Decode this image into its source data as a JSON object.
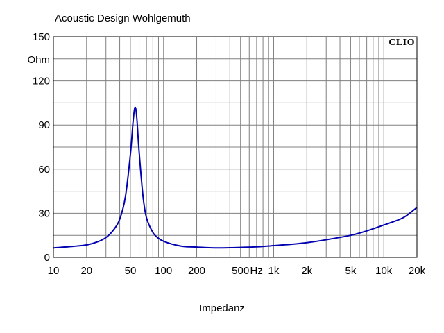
{
  "chart_data": {
    "type": "line",
    "title": "Acoustic Design Wohlgemuth",
    "xlabel": "Impedanz",
    "ylabel": "Ohm",
    "brand": "CLIO",
    "xscale": "log",
    "xlim": [
      10,
      20000
    ],
    "ylim": [
      0,
      150
    ],
    "grid": true,
    "y_ticks": [
      "0",
      "30",
      "60",
      "90",
      "120",
      "150"
    ],
    "y_tick_values": [
      0,
      30,
      60,
      90,
      120,
      150
    ],
    "x_ticks": [
      "10",
      "20",
      "50",
      "100",
      "200",
      "500",
      "1k",
      "2k",
      "5k",
      "10k",
      "20k"
    ],
    "x_tick_values": [
      10,
      20,
      50,
      100,
      200,
      500,
      1000,
      2000,
      5000,
      10000,
      20000
    ],
    "x_unit": "Hz",
    "line_color": "#0000b0",
    "series": [
      {
        "x": [
          10,
          15,
          20,
          25,
          30,
          35,
          40,
          45,
          50,
          53,
          55,
          57,
          60,
          65,
          70,
          80,
          90,
          100,
          120,
          150,
          200,
          300,
          400,
          500,
          700,
          1000,
          1500,
          2000,
          3000,
          5000,
          7000,
          10000,
          15000,
          20000
        ],
        "y": [
          6.5,
          7.5,
          8.5,
          10.5,
          13.5,
          18.5,
          26,
          41,
          70,
          93,
          102,
          96,
          72,
          42,
          27,
          17,
          13,
          11,
          9,
          7.5,
          7,
          6.5,
          6.6,
          6.8,
          7.2,
          8,
          9,
          10,
          12,
          15,
          18,
          22,
          27,
          34
        ]
      }
    ]
  }
}
